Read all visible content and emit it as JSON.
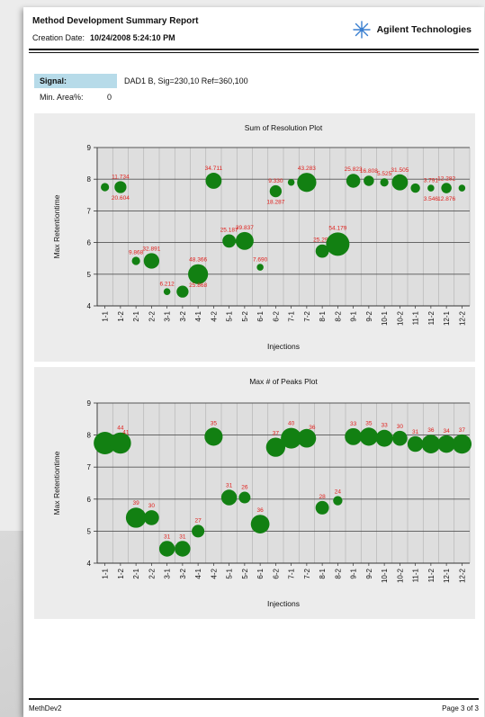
{
  "report": {
    "title": "Method Development Summary Report",
    "creation_date_label": "Creation Date:",
    "creation_date_value": "10/24/2008 5:24:10 PM",
    "brand": "Agilent Technologies",
    "brand_icon": "agilent-spark-icon",
    "signal_label": "Signal:",
    "signal_value": "DAD1 B, Sig=230,10 Ref=360,100",
    "min_area_label": "Min. Area%:",
    "min_area_value": "0",
    "footer_left": "MethDev2",
    "footer_right": "Page 3 of 3"
  },
  "colors": {
    "bubble": "#128012",
    "label": "#e0201c",
    "panel": "#ececec",
    "plot_bg": "#dedede",
    "grid": "#b0b0b0",
    "signal_bg": "#b7dbe9"
  },
  "chart_data": [
    {
      "type": "scatter",
      "title": "Sum of Resolution Plot",
      "xlabel": "Injections",
      "ylabel": "Max Retentiontime",
      "ylim": [
        4,
        9
      ],
      "yticks": [
        4,
        5,
        6,
        7,
        8,
        9
      ],
      "grid": true,
      "categories": [
        "1-1",
        "1-2",
        "2-1",
        "2-2",
        "3-1",
        "3-2",
        "4-1",
        "4-2",
        "5-1",
        "5-2",
        "6-1",
        "6-2",
        "7-1",
        "7-2",
        "8-1",
        "8-2",
        "9-1",
        "9-2",
        "10-1",
        "10-2",
        "11-1",
        "11-2",
        "12-1",
        "12-2"
      ],
      "points": [
        {
          "x": "1-1",
          "y": 7.75,
          "size": 2
        },
        {
          "x": "1-2",
          "y": 7.75,
          "size": 6,
          "label": "11.734"
        },
        {
          "x": "1-2",
          "y": 7.75,
          "size": 0,
          "label": "20.604"
        },
        {
          "x": "2-1",
          "y": 5.42,
          "size": 2,
          "label": "9.868"
        },
        {
          "x": "2-2",
          "y": 5.42,
          "size": 12,
          "label": "32.891"
        },
        {
          "x": "3-1",
          "y": 4.45,
          "size": 1,
          "label": "6.212"
        },
        {
          "x": "3-2",
          "y": 4.45,
          "size": 6
        },
        {
          "x": "4-1",
          "y": 5.0,
          "size": 22,
          "label": "48.366"
        },
        {
          "x": "4-1",
          "y": 5.0,
          "size": 0,
          "label": "25.868"
        },
        {
          "x": "4-2",
          "y": 7.95,
          "size": 13,
          "label": "34.711"
        },
        {
          "x": "5-1",
          "y": 6.05,
          "size": 8,
          "label": "25.187"
        },
        {
          "x": "5-2",
          "y": 6.05,
          "size": 17,
          "label": "39.837"
        },
        {
          "x": "6-1",
          "y": 5.22,
          "size": 1,
          "label": "7.690"
        },
        {
          "x": "6-2",
          "y": 7.62,
          "size": 6,
          "label": "9.330"
        },
        {
          "x": "6-2",
          "y": 7.62,
          "size": 0,
          "label": "18.287"
        },
        {
          "x": "7-1",
          "y": 7.9,
          "size": 1
        },
        {
          "x": "7-2",
          "y": 7.9,
          "size": 20,
          "label": "43.283"
        },
        {
          "x": "8-1",
          "y": 5.73,
          "size": 8,
          "label": "25.297"
        },
        {
          "x": "8-2",
          "y": 5.95,
          "size": 32,
          "label": "54.179"
        },
        {
          "x": "9-1",
          "y": 7.95,
          "size": 9,
          "label": "25.823"
        },
        {
          "x": "9-2",
          "y": 7.95,
          "size": 4,
          "label": "16.808"
        },
        {
          "x": "10-1",
          "y": 7.9,
          "size": 2,
          "label": "5.525"
        },
        {
          "x": "10-2",
          "y": 7.9,
          "size": 13,
          "label": "31.505"
        },
        {
          "x": "11-1",
          "y": 7.72,
          "size": 3
        },
        {
          "x": "11-2",
          "y": 7.72,
          "size": 1,
          "label": "3.791"
        },
        {
          "x": "11-2",
          "y": 7.72,
          "size": 0,
          "label": "3.546"
        },
        {
          "x": "12-1",
          "y": 7.72,
          "size": 4,
          "label": "12.282"
        },
        {
          "x": "12-1",
          "y": 7.72,
          "size": 0,
          "label": "12.876"
        },
        {
          "x": "12-2",
          "y": 7.72,
          "size": 1
        }
      ]
    },
    {
      "type": "scatter",
      "title": "Max # of Peaks Plot",
      "xlabel": "Injections",
      "ylabel": "Max Retentiontime",
      "ylim": [
        4,
        9
      ],
      "yticks": [
        4,
        5,
        6,
        7,
        8,
        9
      ],
      "grid": true,
      "categories": [
        "1-1",
        "1-2",
        "2-1",
        "2-2",
        "3-1",
        "3-2",
        "4-1",
        "4-2",
        "5-1",
        "5-2",
        "6-1",
        "6-2",
        "7-1",
        "7-2",
        "8-1",
        "8-2",
        "9-1",
        "9-2",
        "10-1",
        "10-2",
        "11-1",
        "11-2",
        "12-1",
        "12-2"
      ],
      "points": [
        {
          "x": "1-1",
          "y": 7.75,
          "size": 44
        },
        {
          "x": "1-2",
          "y": 7.75,
          "size": 41,
          "label": "44"
        },
        {
          "x": "1-2",
          "y": 7.75,
          "size": 0,
          "label": "41"
        },
        {
          "x": "2-1",
          "y": 5.42,
          "size": 39,
          "label": "39"
        },
        {
          "x": "2-2",
          "y": 5.42,
          "size": 30,
          "label": "30"
        },
        {
          "x": "3-1",
          "y": 4.45,
          "size": 31,
          "label": "31"
        },
        {
          "x": "3-2",
          "y": 4.45,
          "size": 31,
          "label": "31"
        },
        {
          "x": "4-1",
          "y": 5.0,
          "size": 27,
          "label": "27"
        },
        {
          "x": "4-2",
          "y": 7.95,
          "size": 35,
          "label": "35"
        },
        {
          "x": "5-1",
          "y": 6.05,
          "size": 31,
          "label": "31"
        },
        {
          "x": "5-2",
          "y": 6.05,
          "size": 26,
          "label": "26"
        },
        {
          "x": "6-1",
          "y": 5.22,
          "size": 36,
          "label": "36"
        },
        {
          "x": "6-2",
          "y": 7.62,
          "size": 37,
          "label": "37"
        },
        {
          "x": "7-1",
          "y": 7.9,
          "size": 40,
          "label": "40"
        },
        {
          "x": "7-2",
          "y": 7.9,
          "size": 36
        },
        {
          "x": "8-1",
          "y": 5.73,
          "size": 28,
          "label": "28"
        },
        {
          "x": "8-2",
          "y": 5.95,
          "size": 24,
          "label": "24"
        },
        {
          "x": "9-1",
          "y": 7.95,
          "size": 33,
          "label": "33"
        },
        {
          "x": "9-2",
          "y": 7.95,
          "size": 35,
          "label": "35"
        },
        {
          "x": "10-1",
          "y": 7.9,
          "size": 33,
          "label": "33"
        },
        {
          "x": "10-2",
          "y": 7.9,
          "size": 30,
          "label": "30"
        },
        {
          "x": "11-1",
          "y": 7.72,
          "size": 31,
          "label": "31"
        },
        {
          "x": "11-2",
          "y": 7.72,
          "size": 36,
          "label": "36"
        },
        {
          "x": "12-1",
          "y": 7.72,
          "size": 34,
          "label": "34"
        },
        {
          "x": "12-2",
          "y": 7.72,
          "size": 37,
          "label": "37"
        },
        {
          "x": "7-2",
          "y": 7.9,
          "size": 0,
          "label": "36"
        }
      ]
    }
  ]
}
